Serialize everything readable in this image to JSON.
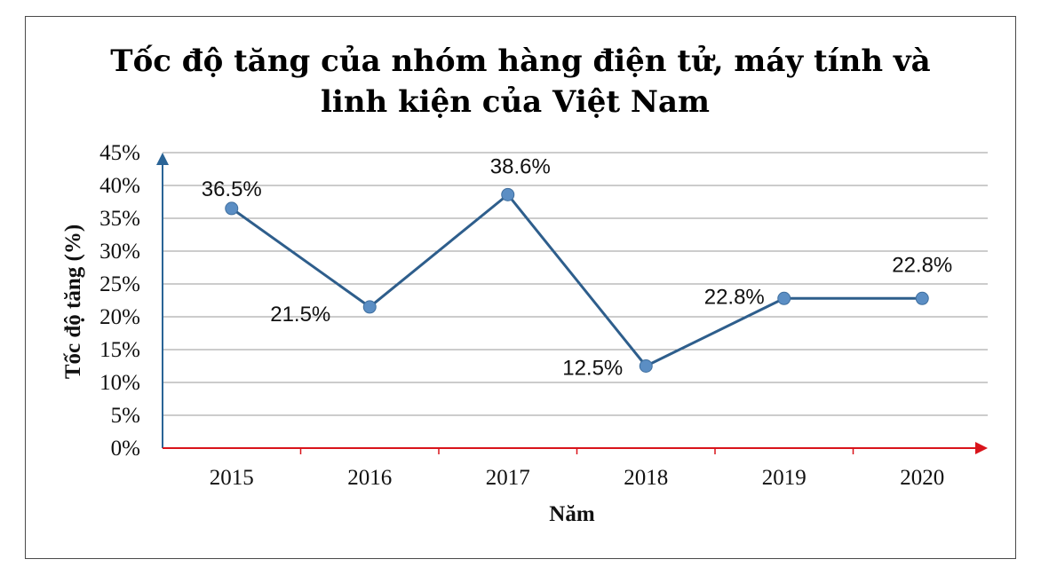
{
  "chart_data": {
    "type": "line",
    "title_lines": [
      "Tốc độ tăng của nhóm hàng điện tử, máy tính và",
      "linh kiện của Việt Nam"
    ],
    "xlabel": "Năm",
    "ylabel": "Tốc độ tăng (%)",
    "categories": [
      "2015",
      "2016",
      "2017",
      "2018",
      "2019",
      "2020"
    ],
    "series": [
      {
        "values": [
          36.5,
          21.5,
          38.6,
          12.5,
          22.8,
          22.8
        ]
      }
    ],
    "data_labels": [
      "36.5%",
      "21.5%",
      "38.6%",
      "12.5%",
      "22.8%",
      "22.8%"
    ],
    "ylim": [
      0,
      45
    ],
    "yticks": [
      {
        "v": 0,
        "label": "0%"
      },
      {
        "v": 5,
        "label": "5%"
      },
      {
        "v": 10,
        "label": "10%"
      },
      {
        "v": 15,
        "label": "15%"
      },
      {
        "v": 20,
        "label": "20%"
      },
      {
        "v": 25,
        "label": "25%"
      },
      {
        "v": 30,
        "label": "30%"
      },
      {
        "v": 35,
        "label": "35%"
      },
      {
        "v": 40,
        "label": "40%"
      },
      {
        "v": 45,
        "label": "45%"
      }
    ],
    "grid": true,
    "colors": {
      "line": "#2e5e8c",
      "marker": "#5b8ec4",
      "x_axis": "#d9141b",
      "y_axis": "#2a6496",
      "grid": "#9a9a9a"
    }
  }
}
